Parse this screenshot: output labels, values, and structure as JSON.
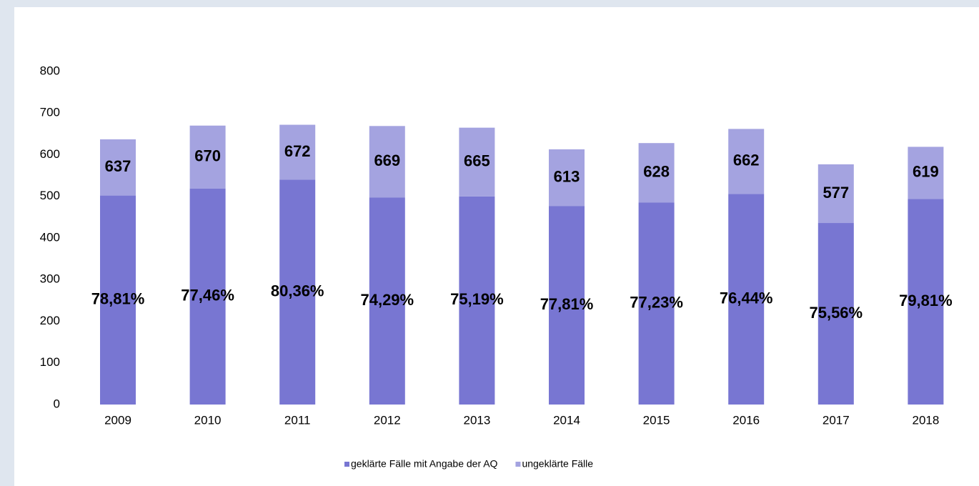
{
  "chart_data": {
    "type": "stacked_bar",
    "categories": [
      "2009",
      "2010",
      "2011",
      "2012",
      "2013",
      "2014",
      "2015",
      "2016",
      "2017",
      "2018"
    ],
    "series": [
      {
        "name": "geklärte Fälle mit Angabe der AQ",
        "color": "#7876d2",
        "values": [
          502,
          519,
          540,
          497,
          500,
          477,
          485,
          506,
          436,
          494
        ]
      },
      {
        "name": "ungeklärte Fälle",
        "color": "#a4a3e0",
        "values": [
          135,
          151,
          132,
          172,
          165,
          136,
          143,
          156,
          141,
          125
        ]
      }
    ],
    "totals": [
      637,
      670,
      672,
      669,
      665,
      613,
      628,
      662,
      577,
      619
    ],
    "percent_labels": [
      "78,81%",
      "77,46%",
      "80,36%",
      "74,29%",
      "75,19%",
      "77,81%",
      "77,23%",
      "76,44%",
      "75,56%",
      "79,81%"
    ],
    "ylim": [
      0,
      800
    ],
    "yticks": [
      0,
      100,
      200,
      300,
      400,
      500,
      600,
      700,
      800
    ],
    "grid": false,
    "legend": "bottom"
  }
}
